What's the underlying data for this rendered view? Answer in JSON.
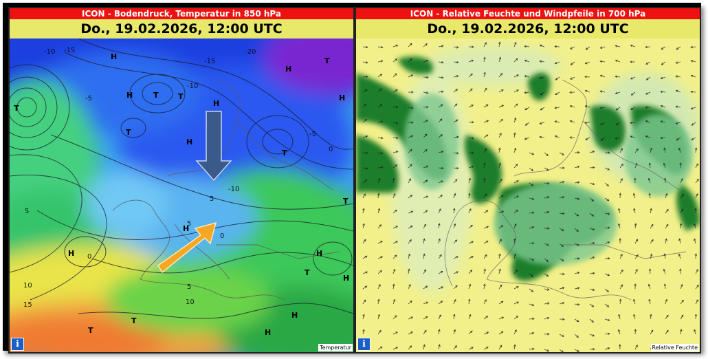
{
  "left_panel": {
    "title": "ICON - Bodendruck, Temperatur in 850 hPa",
    "date": "Do., 19.02.2026, 12:00 UTC",
    "corner_label": "Temperatur",
    "info_icon": "info-icon",
    "pressure_labels": [
      {
        "text": "H"
      },
      {
        "text": "H"
      },
      {
        "text": "H"
      },
      {
        "text": "H"
      },
      {
        "text": "H"
      },
      {
        "text": "H"
      },
      {
        "text": "H"
      },
      {
        "text": "H"
      },
      {
        "text": "H"
      },
      {
        "text": "H"
      },
      {
        "text": "H"
      },
      {
        "text": "H"
      },
      {
        "text": "T"
      },
      {
        "text": "T"
      },
      {
        "text": "T"
      },
      {
        "text": "T"
      },
      {
        "text": "T"
      },
      {
        "text": "T"
      },
      {
        "text": "T"
      },
      {
        "text": "T"
      },
      {
        "text": "T"
      },
      {
        "text": "T"
      }
    ],
    "temperature_labels": [
      {
        "text": "-10"
      },
      {
        "text": "-15"
      },
      {
        "text": "-20"
      },
      {
        "text": "-15"
      },
      {
        "text": "-5"
      },
      {
        "text": "-10"
      },
      {
        "text": "-5"
      },
      {
        "text": "-10"
      },
      {
        "text": "0"
      },
      {
        "text": "5"
      },
      {
        "text": "0"
      },
      {
        "text": "5"
      },
      {
        "text": "10"
      },
      {
        "text": "15"
      },
      {
        "text": "5"
      },
      {
        "text": "10"
      },
      {
        "text": "0"
      },
      {
        "text": "5"
      }
    ]
  },
  "right_panel": {
    "title": "ICON - Relative Feuchte und Windpfeile in 700 hPa",
    "date": "Do., 19.02.2026, 12:00 UTC",
    "corner_label": "Relative Feuchte",
    "info_icon": "info-icon"
  },
  "colors": {
    "title_bar": "#ee1111",
    "date_bar": "#e8e86a",
    "arrow_down": "#3a5a8c",
    "arrow_up": "#f5a623",
    "humidity_dark": "#1e7d2a",
    "humidity_dry": "#f2f08a"
  }
}
